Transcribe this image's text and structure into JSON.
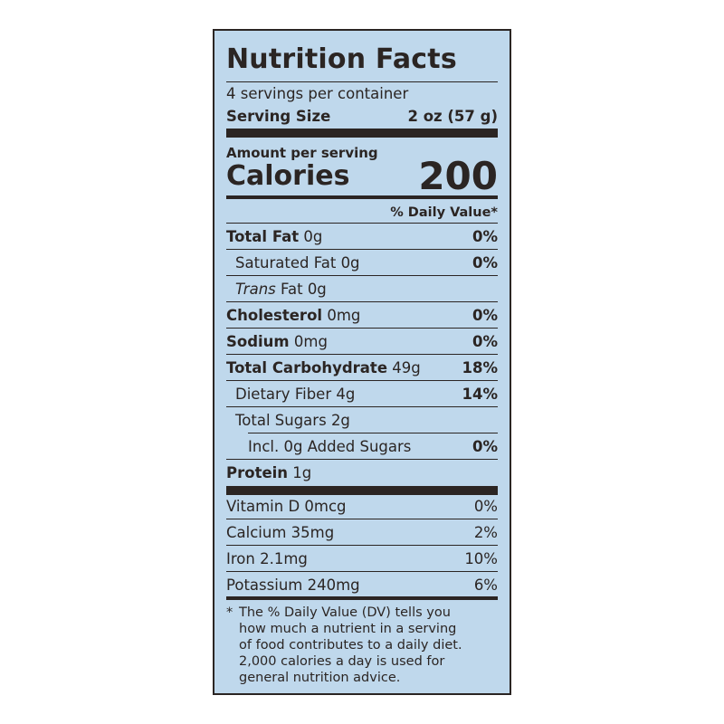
{
  "label": {
    "title": "Nutrition Facts",
    "servings_per_container": "4 servings per container",
    "serving_size_label": "Serving Size",
    "serving_size_value": "2 oz (57 g)",
    "amount_per_serving": "Amount per serving",
    "calories_label": "Calories",
    "calories_value": "200",
    "dv_header": "% Daily Value*",
    "nutrients": {
      "total_fat": {
        "name": "Total Fat",
        "amount": "0g",
        "dv": "0%"
      },
      "saturated_fat": {
        "name": "Saturated Fat",
        "amount": "0g",
        "dv": "0%"
      },
      "trans_fat": {
        "name_italic": "Trans",
        "name": "Fat",
        "amount": "0g"
      },
      "cholesterol": {
        "name": "Cholesterol",
        "amount": "0mg",
        "dv": "0%"
      },
      "sodium": {
        "name": "Sodium",
        "amount": "0mg",
        "dv": "0%"
      },
      "total_carbohydrate": {
        "name": "Total Carbohydrate",
        "amount": "49g",
        "dv": "18%"
      },
      "dietary_fiber": {
        "name": "Dietary Fiber",
        "amount": "4g",
        "dv": "14%"
      },
      "total_sugars": {
        "name": "Total Sugars",
        "amount": "2g"
      },
      "added_sugars": {
        "name": "Incl. 0g Added Sugars",
        "dv": "0%"
      },
      "protein": {
        "name": "Protein",
        "amount": "1g"
      }
    },
    "vitamins": [
      {
        "name": "Vitamin D",
        "amount": "0mcg",
        "dv": "0%"
      },
      {
        "name": "Calcium",
        "amount": "35mg",
        "dv": "2%"
      },
      {
        "name": "Iron",
        "amount": "2.1mg",
        "dv": "10%"
      },
      {
        "name": "Potassium",
        "amount": "240mg",
        "dv": "6%"
      }
    ],
    "footnote_star": "*",
    "footnote": "The % Daily Value (DV) tells you\nhow much a nutrient in a serving\nof food contributes to a daily diet.\n2,000 calories a day is used for\ngeneral nutrition advice."
  },
  "colors": {
    "panel_background": "#bfd8ec",
    "ink": "#2b2523"
  }
}
